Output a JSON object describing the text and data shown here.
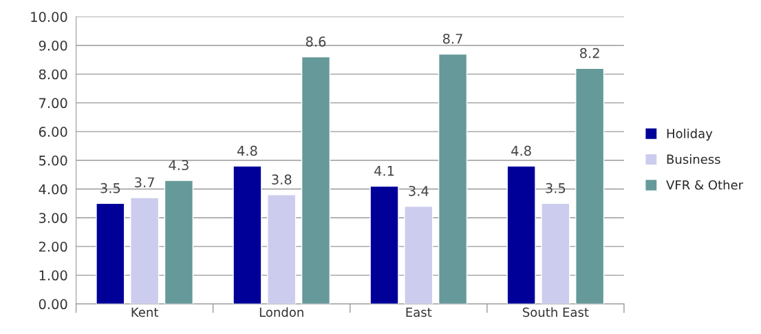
{
  "chart_data": {
    "type": "bar",
    "categories": [
      "Kent",
      "London",
      "East",
      "South East"
    ],
    "series": [
      {
        "name": "Holiday",
        "color": "#000099",
        "values": [
          3.5,
          4.8,
          4.1,
          4.8
        ]
      },
      {
        "name": "Business",
        "color": "#ccccee",
        "values": [
          3.7,
          3.8,
          3.4,
          3.5
        ]
      },
      {
        "name": "VFR & Other",
        "color": "#669999",
        "values": [
          4.3,
          8.6,
          8.7,
          8.2
        ]
      }
    ],
    "ylim": [
      0,
      10
    ],
    "yticks": [
      {
        "value": 0,
        "label": "0.00"
      },
      {
        "value": 1,
        "label": "1.00"
      },
      {
        "value": 2,
        "label": "2.00"
      },
      {
        "value": 3,
        "label": "3.00"
      },
      {
        "value": 4,
        "label": "4.00"
      },
      {
        "value": 5,
        "label": "5.00"
      },
      {
        "value": 6,
        "label": "6.00"
      },
      {
        "value": 7,
        "label": "7.00"
      },
      {
        "value": 8,
        "label": "8.00"
      },
      {
        "value": 9,
        "label": "9.00"
      },
      {
        "value": 10,
        "label": "10.00"
      }
    ],
    "grid": "y",
    "legend": "right",
    "data_labels": true
  }
}
